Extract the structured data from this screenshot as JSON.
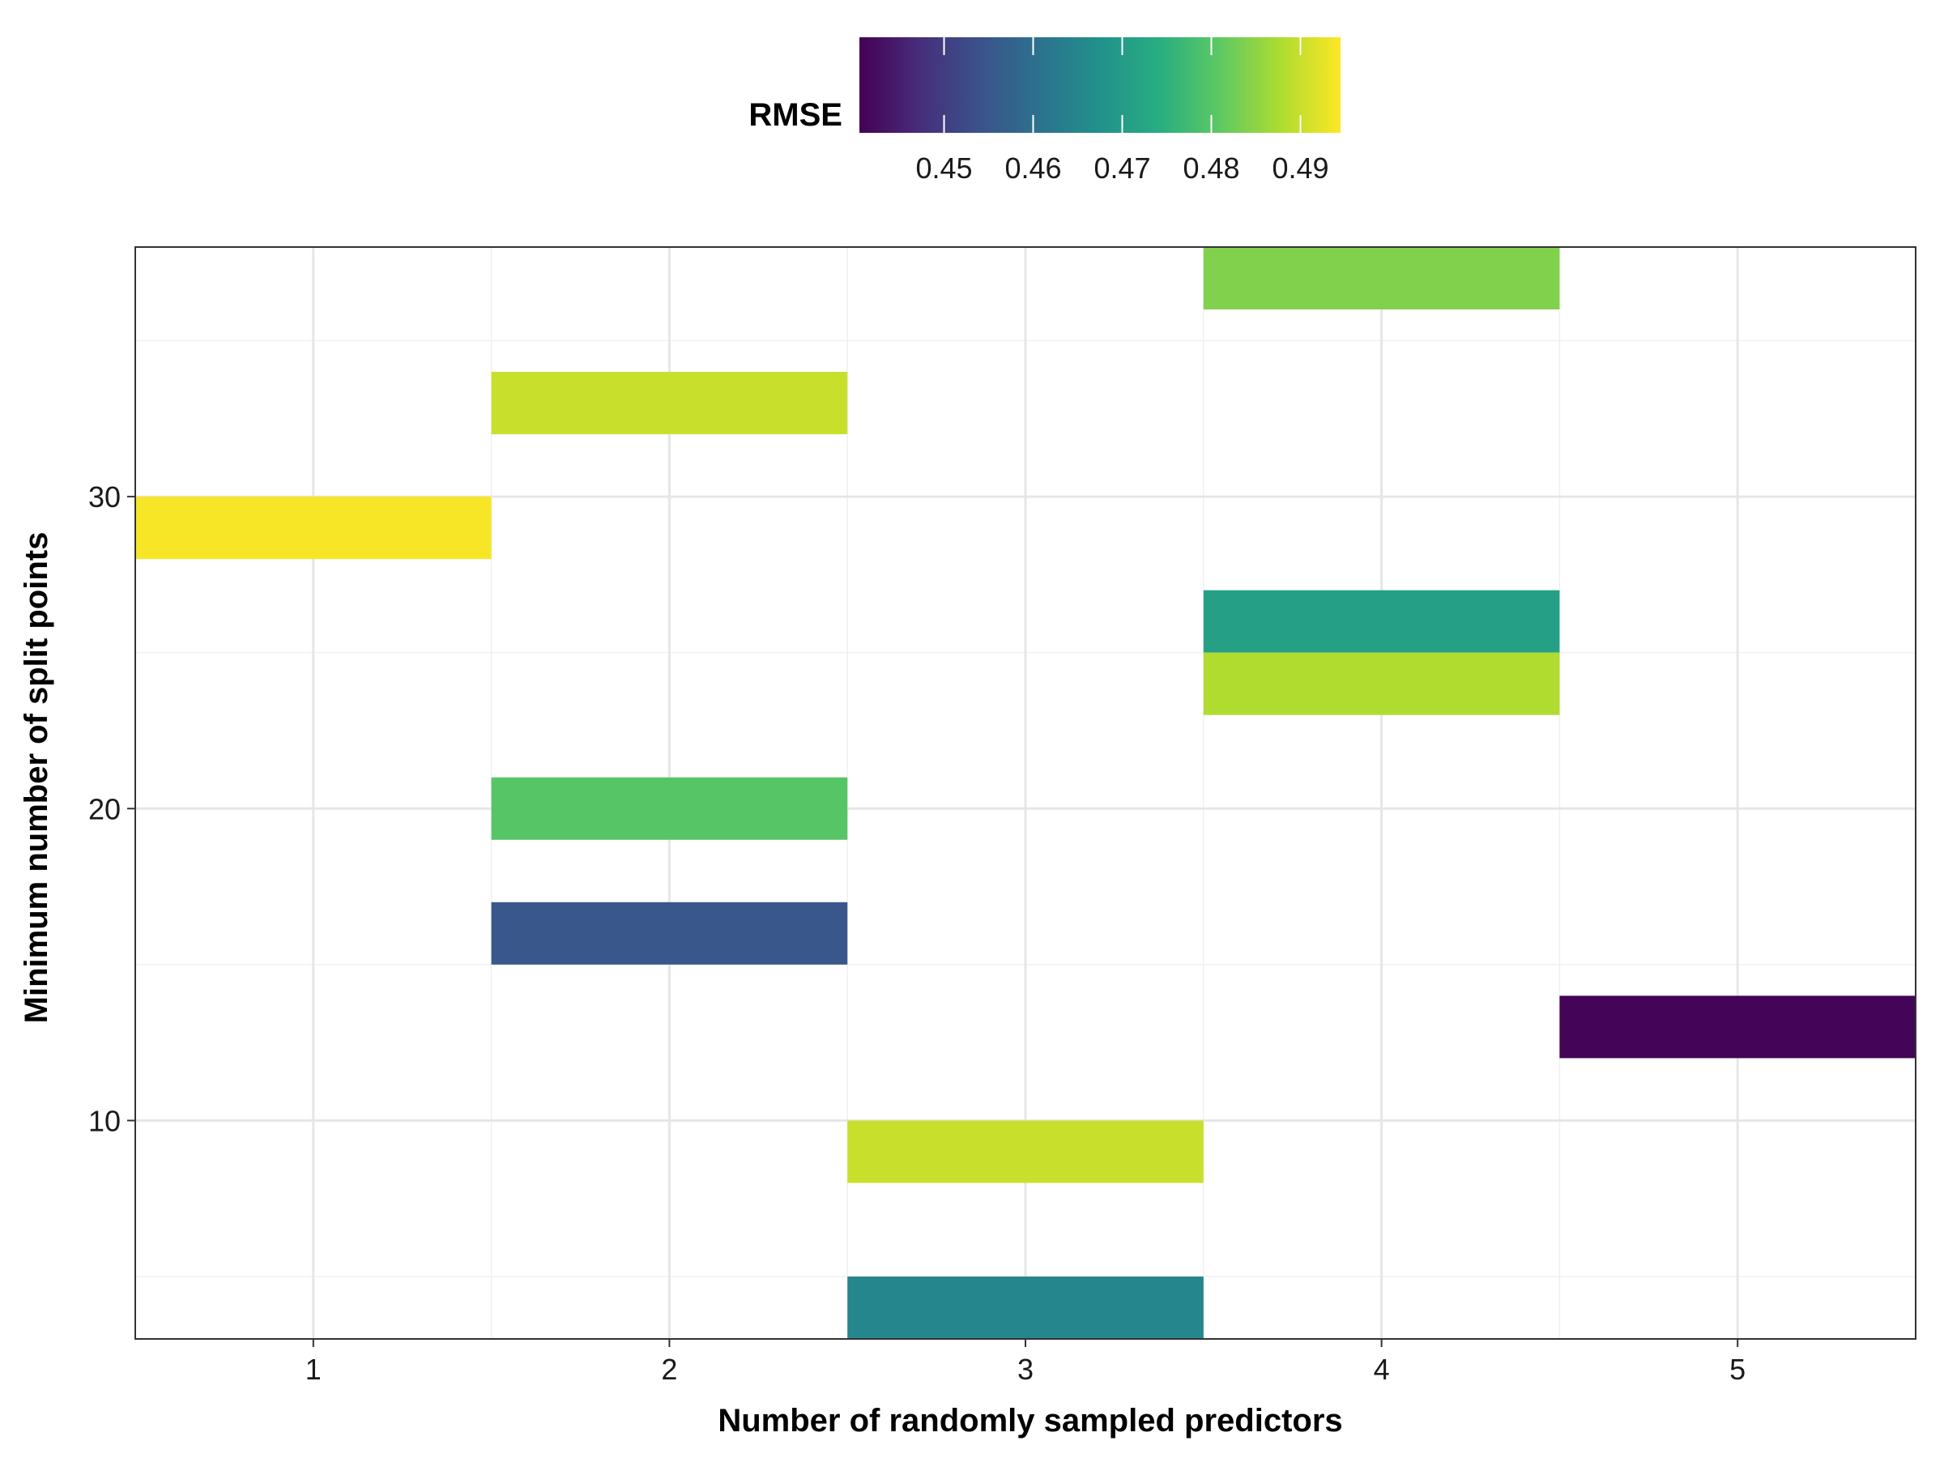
{
  "chart_data": {
    "type": "heatmap",
    "title": "",
    "xlabel": "Number of randomly sampled predictors",
    "ylabel": "Minimum number of split points",
    "x_ticks": [
      1,
      2,
      3,
      4,
      5
    ],
    "y_ticks": [
      10,
      20,
      30
    ],
    "xlim": [
      0.5,
      5.5
    ],
    "ylim": [
      3,
      38
    ],
    "grid": true,
    "legend": {
      "title": "RMSE",
      "position": "top",
      "range": [
        0.4405,
        0.4945
      ],
      "ticks": [
        0.45,
        0.46,
        0.47,
        0.48,
        0.49
      ],
      "tick_labels": [
        "0.45",
        "0.46",
        "0.47",
        "0.48",
        "0.49"
      ],
      "colormap": "viridis"
    },
    "cells": [
      {
        "x": 1,
        "y": 29,
        "rmse": 0.494
      },
      {
        "x": 2,
        "y": 33,
        "rmse": 0.49
      },
      {
        "x": 2,
        "y": 20,
        "rmse": 0.48
      },
      {
        "x": 2,
        "y": 16,
        "rmse": 0.455
      },
      {
        "x": 3,
        "y": 9,
        "rmse": 0.49
      },
      {
        "x": 3,
        "y": 4,
        "rmse": 0.465
      },
      {
        "x": 4,
        "y": 37,
        "rmse": 0.484
      },
      {
        "x": 4,
        "y": 26,
        "rmse": 0.471
      },
      {
        "x": 4,
        "y": 24,
        "rmse": 0.488
      },
      {
        "x": 5,
        "y": 13,
        "rmse": 0.441
      }
    ]
  }
}
